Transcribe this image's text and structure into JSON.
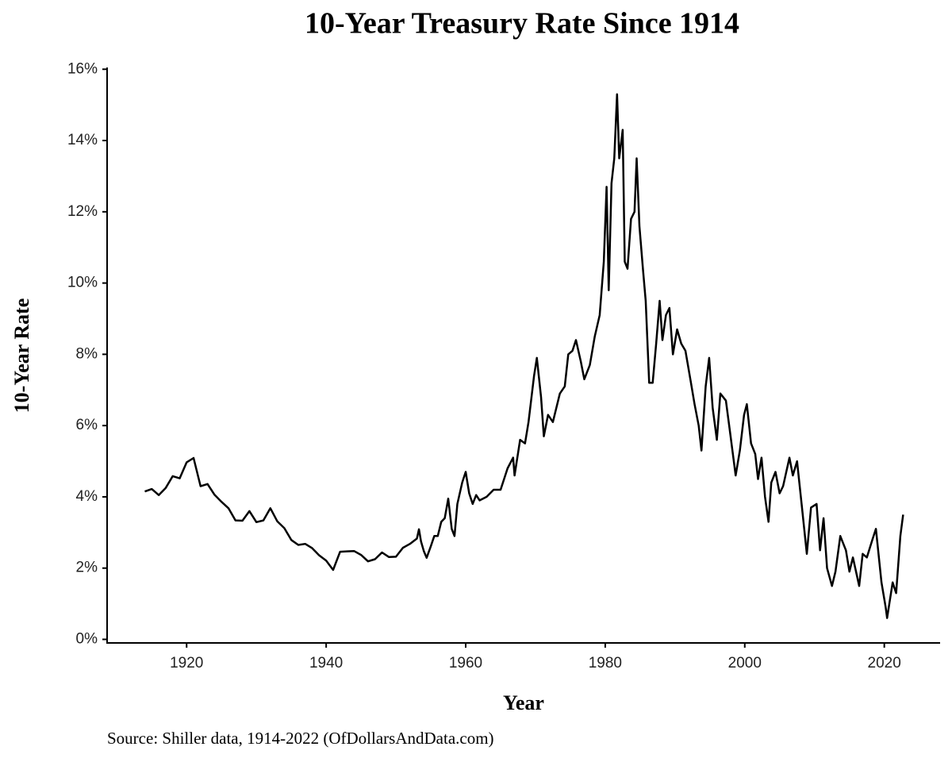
{
  "chart_data": {
    "type": "line",
    "title": "10-Year Treasury Rate Since 1914",
    "xlabel": "Year",
    "ylabel": "10-Year Rate",
    "source": "Source: Shiller data, 1914-2022 (OfDollarsAndData.com)",
    "color": "#000000",
    "xlim": [
      1908.6,
      2028
    ],
    "ylim": [
      -0.1,
      16.05
    ],
    "xticks": [
      1920,
      1940,
      1960,
      1980,
      2000,
      2020
    ],
    "yticks": [
      {
        "value": 0,
        "label": "0%"
      },
      {
        "value": 2,
        "label": "2%"
      },
      {
        "value": 4,
        "label": "4%"
      },
      {
        "value": 6,
        "label": "6%"
      },
      {
        "value": 8,
        "label": "8%"
      },
      {
        "value": 10,
        "label": "10%"
      },
      {
        "value": 12,
        "label": "12%"
      },
      {
        "value": 14,
        "label": "14%"
      },
      {
        "value": 16,
        "label": "16%"
      }
    ],
    "x": [
      1914,
      1915,
      1916,
      1917,
      1918,
      1919,
      1920,
      1921,
      1922,
      1923,
      1924,
      1925,
      1926,
      1927,
      1928,
      1929,
      1930,
      1931,
      1932,
      1933,
      1934,
      1935,
      1936,
      1937,
      1938,
      1939,
      1940,
      1941,
      1942,
      1943,
      1944,
      1945,
      1946,
      1947,
      1948,
      1949,
      1950,
      1951,
      1952,
      1953,
      1953.3,
      1953.6,
      1954,
      1954.4,
      1955,
      1955.5,
      1956,
      1956.5,
      1957,
      1957.5,
      1958,
      1958.4,
      1958.8,
      1959.5,
      1960,
      1960.5,
      1961,
      1961.5,
      1962,
      1963,
      1964,
      1965,
      1966,
      1966.8,
      1967,
      1967.8,
      1968.5,
      1969,
      1969.8,
      1970.2,
      1970.8,
      1971.2,
      1971.8,
      1972.5,
      1973.5,
      1974.2,
      1974.7,
      1975.3,
      1975.8,
      1976.5,
      1977,
      1977.8,
      1978.5,
      1979.2,
      1979.8,
      1980.2,
      1980.5,
      1980.9,
      1981.3,
      1981.7,
      1982,
      1982.5,
      1982.8,
      1983.2,
      1983.7,
      1984.2,
      1984.5,
      1984.9,
      1985.4,
      1985.8,
      1986.3,
      1986.8,
      1987.3,
      1987.8,
      1988.2,
      1988.7,
      1989.2,
      1989.7,
      1990.3,
      1990.9,
      1991.5,
      1992.2,
      1992.8,
      1993.4,
      1993.8,
      1994.4,
      1994.9,
      1995.4,
      1996,
      1996.5,
      1997.3,
      1997.9,
      1998.7,
      1999.3,
      1999.9,
      2000.3,
      2000.9,
      2001.5,
      2001.9,
      2002.4,
      2002.9,
      2003.4,
      2003.8,
      2004.4,
      2005,
      2005.5,
      2006.4,
      2006.9,
      2007.5,
      2008.2,
      2008.9,
      2009.5,
      2010.3,
      2010.8,
      2011.3,
      2011.8,
      2012.5,
      2013,
      2013.7,
      2014.5,
      2015,
      2015.5,
      2016.4,
      2016.9,
      2017.5,
      2018.3,
      2018.8,
      2019.6,
      2020.2,
      2020.4,
      2021.2,
      2021.7,
      2022.3,
      2022.7
    ],
    "values": [
      4.15,
      4.22,
      4.05,
      4.25,
      4.58,
      4.52,
      4.97,
      5.09,
      4.3,
      4.36,
      4.06,
      3.86,
      3.68,
      3.34,
      3.33,
      3.6,
      3.29,
      3.34,
      3.68,
      3.31,
      3.12,
      2.79,
      2.65,
      2.68,
      2.56,
      2.36,
      2.21,
      1.95,
      2.46,
      2.47,
      2.48,
      2.37,
      2.19,
      2.25,
      2.44,
      2.31,
      2.32,
      2.57,
      2.68,
      2.83,
      3.09,
      2.75,
      2.48,
      2.29,
      2.61,
      2.9,
      2.9,
      3.3,
      3.4,
      3.95,
      3.1,
      2.9,
      3.8,
      4.4,
      4.7,
      4.1,
      3.8,
      4.05,
      3.9,
      4.0,
      4.2,
      4.2,
      4.8,
      5.1,
      4.6,
      5.6,
      5.5,
      6.1,
      7.4,
      7.9,
      6.8,
      5.7,
      6.3,
      6.1,
      6.9,
      7.1,
      8.0,
      8.1,
      8.4,
      7.8,
      7.3,
      7.7,
      8.5,
      9.1,
      10.6,
      12.7,
      9.8,
      12.8,
      13.5,
      15.3,
      13.5,
      14.3,
      10.6,
      10.4,
      11.8,
      12.0,
      13.5,
      11.6,
      10.4,
      9.5,
      7.2,
      7.2,
      8.3,
      9.5,
      8.4,
      9.1,
      9.3,
      8.0,
      8.7,
      8.3,
      8.1,
      7.3,
      6.6,
      6.0,
      5.3,
      7.1,
      7.9,
      6.5,
      5.6,
      6.9,
      6.7,
      5.8,
      4.6,
      5.3,
      6.3,
      6.6,
      5.5,
      5.2,
      4.5,
      5.1,
      4.0,
      3.3,
      4.4,
      4.7,
      4.1,
      4.3,
      5.1,
      4.6,
      5.0,
      3.7,
      2.4,
      3.7,
      3.8,
      2.5,
      3.4,
      2.0,
      1.5,
      1.9,
      2.9,
      2.5,
      1.9,
      2.3,
      1.5,
      2.4,
      2.3,
      2.8,
      3.1,
      1.6,
      0.9,
      0.6,
      1.6,
      1.3,
      2.9,
      3.5
    ]
  }
}
